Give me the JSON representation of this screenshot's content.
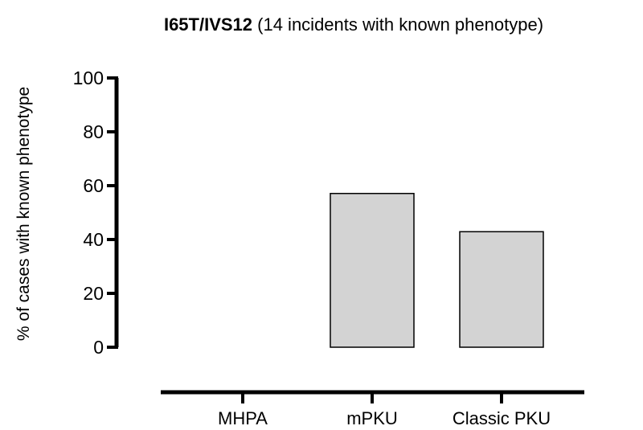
{
  "chart_data": {
    "type": "bar",
    "title_bold": "I65T/IVS12",
    "title_rest": " (14 incidents with known phenotype)",
    "ylabel": "% of cases with known phenotype",
    "xlabel": "",
    "categories": [
      "MHPA",
      "mPKU",
      "Classic PKU"
    ],
    "values": [
      0,
      57.1,
      42.9
    ],
    "ylim": [
      0,
      100
    ],
    "yticks": [
      0,
      20,
      40,
      60,
      80,
      100
    ],
    "grid": false,
    "bar_color": "#d3d3d3",
    "bar_stroke": "#000000"
  }
}
